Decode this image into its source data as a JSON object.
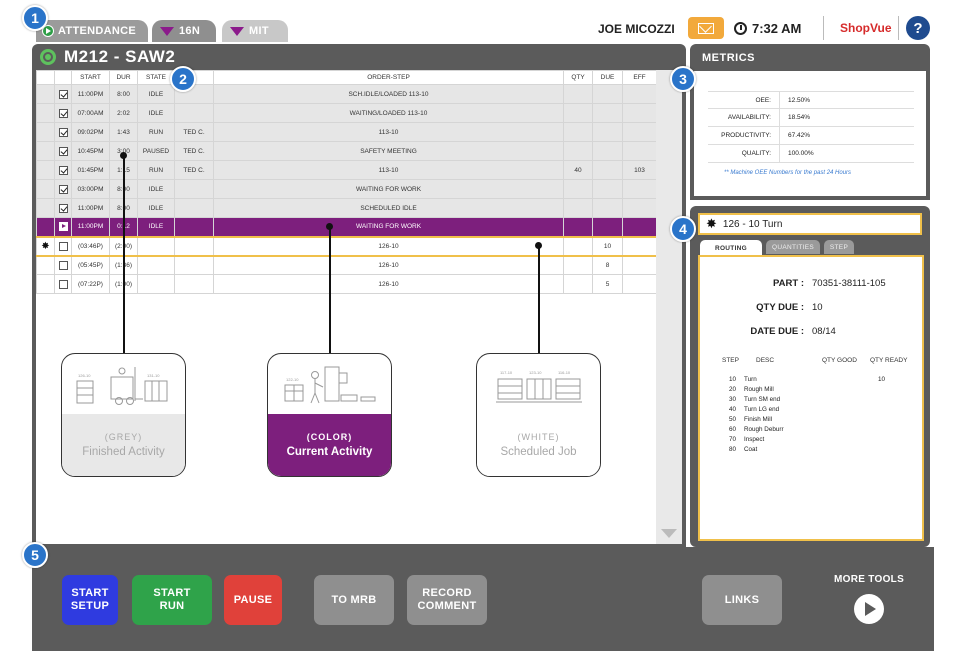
{
  "top": {
    "tabs": [
      {
        "label": "ATTENDANCE"
      },
      {
        "label": "16N"
      },
      {
        "label": "MIT"
      }
    ],
    "user": "JOE MICOZZI",
    "time": "7:32 AM",
    "brand": "ShopVue",
    "help": "?"
  },
  "callouts": [
    "1",
    "2",
    "3",
    "4",
    "5"
  ],
  "machine": {
    "title": "M212 - SAW2"
  },
  "table": {
    "headers": [
      "",
      "",
      "START",
      "DUR",
      "STATE",
      "",
      "ORDER-STEP",
      "QTY",
      "DUE",
      "EFF"
    ],
    "rows": [
      {
        "status": "checked",
        "start": "11:00PM",
        "dur": "8:00",
        "state": "IDLE",
        "op": "",
        "order": "SCH.IDLE/LOADED 113-10",
        "qty": "",
        "due": "",
        "eff": ""
      },
      {
        "status": "checked",
        "start": "07:00AM",
        "dur": "2:02",
        "state": "IDLE",
        "op": "",
        "order": "WAITING/LOADED 113-10",
        "qty": "",
        "due": "",
        "eff": ""
      },
      {
        "status": "checked",
        "start": "09:02PM",
        "dur": "1:43",
        "state": "RUN",
        "op": "TED C.",
        "order": "113-10",
        "qty": "",
        "due": "",
        "eff": ""
      },
      {
        "status": "checked",
        "start": "10:45PM",
        "dur": "3:00",
        "state": "PAUSED",
        "op": "TED C.",
        "order": "SAFETY MEETING",
        "qty": "",
        "due": "",
        "eff": ""
      },
      {
        "status": "checked",
        "start": "01:45PM",
        "dur": "1:15",
        "state": "RUN",
        "op": "TED C.",
        "order": "113-10",
        "qty": "40",
        "due": "",
        "eff": "103"
      },
      {
        "status": "checked",
        "start": "03:00PM",
        "dur": "8:00",
        "state": "IDLE",
        "op": "",
        "order": "WAITING FOR WORK",
        "qty": "",
        "due": "",
        "eff": ""
      },
      {
        "status": "checked",
        "start": "11:00PM",
        "dur": "8:00",
        "state": "IDLE",
        "op": "",
        "order": "SCHEDULED IDLE",
        "qty": "",
        "due": "",
        "eff": ""
      },
      {
        "status": "current",
        "start": "11:00PM",
        "dur": "0:12",
        "state": "IDLE",
        "op": "",
        "order": "WAITING FOR WORK",
        "qty": "",
        "due": "",
        "eff": ""
      },
      {
        "status": "selected",
        "start": "(03:46P)",
        "dur": "(2:00)",
        "state": "",
        "op": "",
        "order": "126-10",
        "qty": "",
        "due": "10",
        "eff": ""
      },
      {
        "status": "open",
        "start": "(05:45P)",
        "dur": "(1:36)",
        "state": "",
        "op": "",
        "order": "126-10",
        "qty": "",
        "due": "8",
        "eff": ""
      },
      {
        "status": "open",
        "start": "(07:22P)",
        "dur": "(1:00)",
        "state": "",
        "op": "",
        "order": "126-10",
        "qty": "",
        "due": "5",
        "eff": ""
      }
    ]
  },
  "legend": [
    {
      "tag": "(GREY)",
      "text": "Finished Activity",
      "art": [
        "126-10",
        "131-10"
      ]
    },
    {
      "tag": "(COLOR)",
      "text": "Current Activity",
      "art": [
        "122-10"
      ]
    },
    {
      "tag": "(WHITE)",
      "text": "Scheduled Job",
      "art": [
        "117-10",
        "123-10",
        "116-10"
      ]
    }
  ],
  "metrics": {
    "title": "METRICS",
    "rows": [
      {
        "label": "OEE:",
        "value": "12.50%"
      },
      {
        "label": "AVAILABILITY:",
        "value": "18.54%"
      },
      {
        "label": "PRODUCTIVITY:",
        "value": "67.42%"
      },
      {
        "label": "QUALITY:",
        "value": "100.00%"
      }
    ],
    "note": "** Machine OEE Numbers for the past 24 Hours"
  },
  "job": {
    "title": "126 - 10 Turn",
    "tabs": [
      "ROUTING",
      "QUANTITIES",
      "STEP"
    ],
    "part_label": "PART :",
    "part": "70351-38111-105",
    "qty_label": "QTY DUE :",
    "qty": "10",
    "date_label": "DATE DUE :",
    "date": "08/14",
    "route_headers": [
      "STEP",
      "DESC",
      "QTY GOOD",
      "QTY READY"
    ],
    "steps": [
      {
        "step": "10",
        "desc": "Turn",
        "ready": "10"
      },
      {
        "step": "20",
        "desc": "Rough Mill",
        "ready": ""
      },
      {
        "step": "30",
        "desc": "Turn SM end",
        "ready": ""
      },
      {
        "step": "40",
        "desc": "Turn LG end",
        "ready": ""
      },
      {
        "step": "50",
        "desc": "Finish Mill",
        "ready": ""
      },
      {
        "step": "60",
        "desc": "Rough Deburr",
        "ready": ""
      },
      {
        "step": "70",
        "desc": "Inspect",
        "ready": ""
      },
      {
        "step": "80",
        "desc": "Coat",
        "ready": ""
      }
    ]
  },
  "toolbar": {
    "buttons": [
      {
        "label": "START\nSETUP",
        "color": "#2f3be0"
      },
      {
        "label": "START\nRUN",
        "color": "#2fa34a"
      },
      {
        "label": "PAUSE",
        "color": "#e0413a"
      },
      {
        "label": "TO MRB",
        "color": "#8f8f8f"
      },
      {
        "label": "RECORD\nCOMMENT",
        "color": "#8f8f8f"
      },
      {
        "label": "LINKS",
        "color": "#8f8f8f"
      }
    ],
    "more_tools": "MORE TOOLS"
  },
  "colors": {
    "accent": "#2a74c9",
    "current": "#7d1f7d",
    "selected_outline": "#f0c04a",
    "panel": "#5b5b5b",
    "mail": "#f2a93b",
    "brand": "#d62b2b"
  }
}
